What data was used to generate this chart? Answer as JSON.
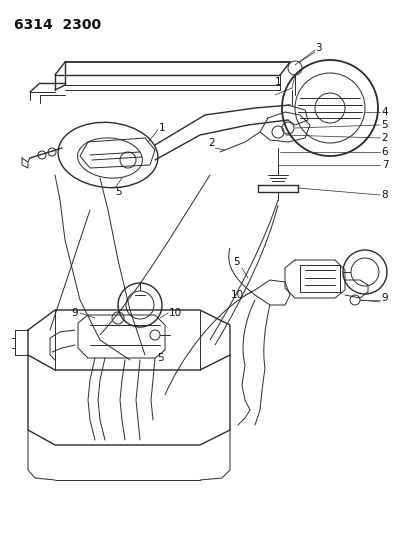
{
  "title_code": "6314  2300",
  "bg_color": "#ffffff",
  "line_color": "#2a2a2a",
  "label_color": "#111111",
  "label_fontsize": 7.5,
  "fig_width": 4.08,
  "fig_height": 5.33,
  "dpi": 100
}
